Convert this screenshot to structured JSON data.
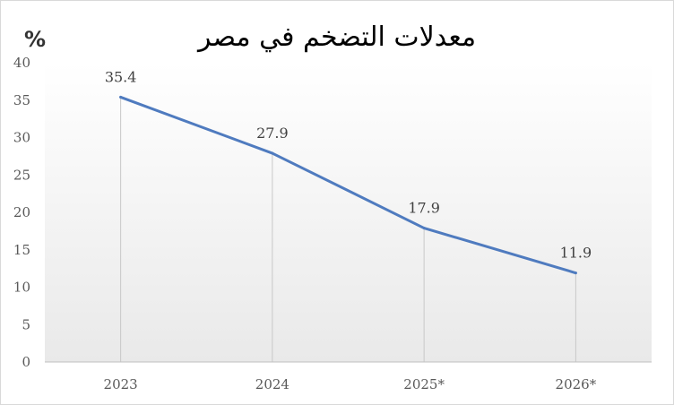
{
  "chart_data": {
    "type": "line",
    "title": "معدلات التضخم في مصر",
    "ylabel": "%",
    "categories": [
      "2023",
      "2024",
      "2025*",
      "2026*"
    ],
    "series": [
      {
        "values": [
          35.4,
          27.9,
          17.9,
          11.9
        ],
        "color": "#4f7bbf"
      }
    ],
    "ylim": [
      0,
      40
    ],
    "yticks": [
      0,
      5,
      10,
      15,
      20,
      25,
      30,
      35,
      40
    ],
    "data_labels": [
      "35.4",
      "27.9",
      "17.9",
      "11.9"
    ],
    "grid": false,
    "drop_lines": true
  }
}
